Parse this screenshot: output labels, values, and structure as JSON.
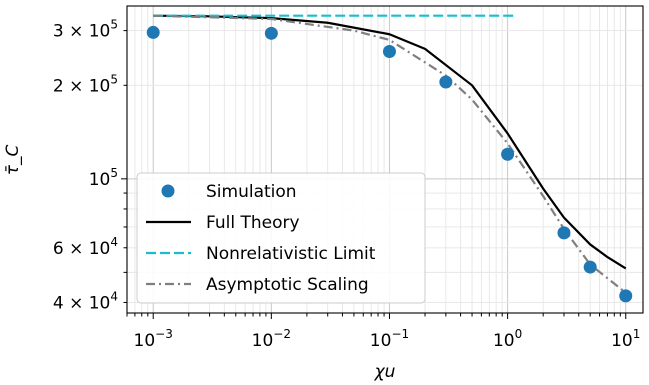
{
  "chart_data": {
    "type": "line",
    "x_scale": "log",
    "y_scale": "log",
    "xlim": [
      0.0006,
      14
    ],
    "ylim": [
      37000,
      360000
    ],
    "xlabel": "χu",
    "ylabel": "τ̄_C",
    "grid": true,
    "legend_position": "lower-left",
    "x_ticks": [
      {
        "value": 0.001,
        "base": "10",
        "exp": "−3"
      },
      {
        "value": 0.01,
        "base": "10",
        "exp": "−2"
      },
      {
        "value": 0.1,
        "base": "10",
        "exp": "−1"
      },
      {
        "value": 1,
        "base": "10",
        "exp": "0"
      },
      {
        "value": 10,
        "base": "10",
        "exp": "1"
      }
    ],
    "y_ticks": [
      {
        "value": 40000,
        "mant": "4 × 10",
        "exp": "4"
      },
      {
        "value": 60000,
        "mant": "6 × 10",
        "exp": "4"
      },
      {
        "value": 100000,
        "mant": "10",
        "exp": "5"
      },
      {
        "value": 200000,
        "mant": "2 × 10",
        "exp": "5"
      },
      {
        "value": 300000,
        "mant": "3 × 10",
        "exp": "5"
      }
    ],
    "series": [
      {
        "name": "Simulation",
        "kind": "scatter",
        "color": "#1f77b4",
        "points": [
          [
            0.001,
            296000
          ],
          [
            0.01,
            294000
          ],
          [
            0.1,
            257000
          ],
          [
            0.3,
            205000
          ],
          [
            1,
            120000
          ],
          [
            3,
            67000
          ],
          [
            5,
            52000
          ],
          [
            10,
            42000
          ]
        ]
      },
      {
        "name": "Full Theory",
        "kind": "line",
        "style": "solid",
        "color": "#000000",
        "points": [
          [
            0.001,
            335000
          ],
          [
            0.003,
            333500
          ],
          [
            0.01,
            329000
          ],
          [
            0.03,
            318000
          ],
          [
            0.1,
            292000
          ],
          [
            0.2,
            262000
          ],
          [
            0.5,
            200000
          ],
          [
            1,
            140000
          ],
          [
            2,
            93000
          ],
          [
            3,
            75000
          ],
          [
            5,
            61500
          ],
          [
            7,
            56000
          ],
          [
            10,
            51500
          ]
        ]
      },
      {
        "name": "Nonrelativistic Limit",
        "kind": "line",
        "style": "dashed",
        "color": "#17becf",
        "points": [
          [
            0.001,
            335000
          ],
          [
            1.2,
            335000
          ]
        ]
      },
      {
        "name": "Asymptotic Scaling",
        "kind": "line",
        "style": "dashdot",
        "color": "#7f7f7f",
        "points": [
          [
            0.001,
            335000
          ],
          [
            0.01,
            327000
          ],
          [
            0.05,
            300000
          ],
          [
            0.1,
            280000
          ],
          [
            0.3,
            215000
          ],
          [
            0.5,
            180000
          ],
          [
            1,
            130000
          ],
          [
            2,
            88000
          ],
          [
            3,
            69000
          ],
          [
            5,
            53000
          ],
          [
            10,
            43000
          ]
        ]
      }
    ]
  }
}
